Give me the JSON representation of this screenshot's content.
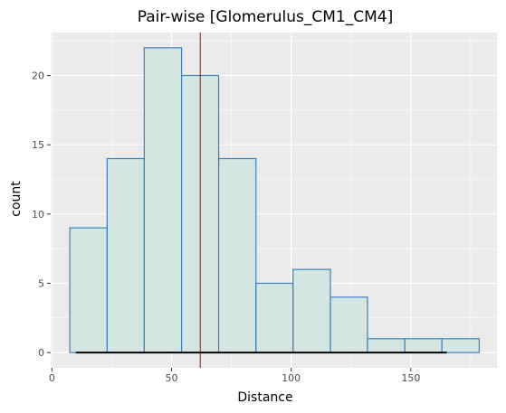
{
  "chart_data": {
    "type": "bar",
    "title": "Pair-wise [Glomerulus_CM1_CM4]",
    "xlabel": "Distance",
    "ylabel": "count",
    "xlim": [
      -0.5,
      186
    ],
    "ylim": [
      -1.1,
      23.1
    ],
    "x_ticks": [
      0,
      50,
      100,
      150
    ],
    "x_tick_labels": [
      "0",
      "50",
      "100",
      "150"
    ],
    "y_ticks": [
      0,
      5,
      10,
      15,
      20
    ],
    "y_tick_labels": [
      "0",
      "5",
      "10",
      "15",
      "20"
    ],
    "bins": [
      {
        "x0": 7.5,
        "x1": 23.1,
        "count": 9
      },
      {
        "x0": 23.1,
        "x1": 38.6,
        "count": 14
      },
      {
        "x0": 38.6,
        "x1": 54.2,
        "count": 22
      },
      {
        "x0": 54.2,
        "x1": 69.7,
        "count": 20
      },
      {
        "x0": 69.7,
        "x1": 85.3,
        "count": 14
      },
      {
        "x0": 85.3,
        "x1": 100.8,
        "count": 5
      },
      {
        "x0": 100.8,
        "x1": 116.4,
        "count": 6
      },
      {
        "x0": 116.4,
        "x1": 131.9,
        "count": 4
      },
      {
        "x0": 131.9,
        "x1": 147.5,
        "count": 1
      },
      {
        "x0": 147.5,
        "x1": 163.0,
        "count": 1
      },
      {
        "x0": 163.0,
        "x1": 178.6,
        "count": 1
      }
    ],
    "mean_line_x": 62,
    "rug_range": [
      10,
      165
    ],
    "grid": true,
    "colors": {
      "panel_bg": "#ebebeb",
      "grid": "#ffffff",
      "bar_fill": "#d5e6e2",
      "bar_edge": "#3a7fc1",
      "mean_line": "#cc0000",
      "rug": "#000000"
    }
  }
}
